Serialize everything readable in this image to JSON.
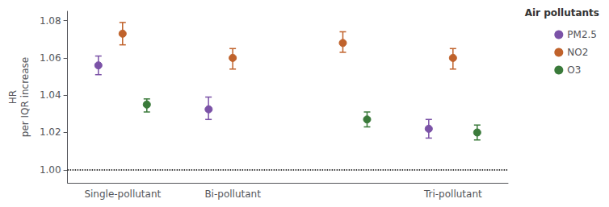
{
  "chart_data": {
    "type": "scatter",
    "ylabel": "HR\nper IQR increase",
    "legend_title": "Air pollutants",
    "categories": [
      "Single-pollutant",
      "Bi-pollutant",
      null,
      "Tri-pollutant"
    ],
    "series": [
      {
        "name": "PM2.5",
        "color": "#7b52a7",
        "marker": "circle",
        "values": [
          1.056,
          1.033,
          null,
          1.022
        ],
        "lo": [
          1.051,
          1.027,
          null,
          1.017
        ],
        "hi": [
          1.061,
          1.039,
          null,
          1.027
        ]
      },
      {
        "name": "NO2",
        "color": "#c0622b",
        "marker": "circle",
        "values": [
          1.073,
          1.06,
          1.068,
          1.06
        ],
        "lo": [
          1.067,
          1.054,
          1.063,
          1.054
        ],
        "hi": [
          1.079,
          1.065,
          1.074,
          1.065
        ]
      },
      {
        "name": "O3",
        "color": "#3a7a3a",
        "marker": "circle",
        "values": [
          1.035,
          null,
          1.027,
          1.02
        ],
        "lo": [
          1.031,
          null,
          1.023,
          1.016
        ],
        "hi": [
          1.038,
          null,
          1.031,
          1.024
        ]
      }
    ],
    "ylim": [
      0.993,
      1.085
    ],
    "yticks": [
      {
        "value": 1.0,
        "label": "1.00"
      },
      {
        "value": 1.02,
        "label": "1.02"
      },
      {
        "value": 1.04,
        "label": "1.04"
      },
      {
        "value": 1.06,
        "label": "1.06"
      },
      {
        "value": 1.08,
        "label": "1.08"
      }
    ],
    "reference_line": 1.0,
    "grid": false,
    "legend": "upper right"
  }
}
